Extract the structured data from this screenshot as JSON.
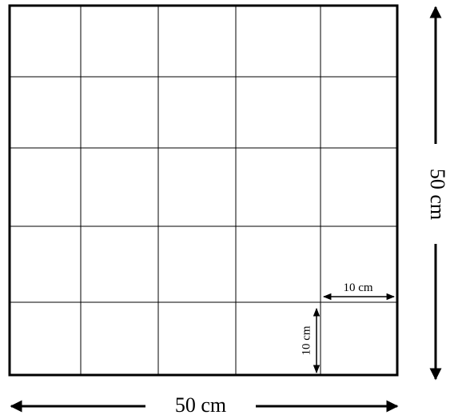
{
  "grid": {
    "rows": 5,
    "columns": 5
  },
  "labels": {
    "bottom_dimension": "50 cm",
    "right_dimension": "50 cm",
    "cell_width": "10 cm",
    "cell_height": "10 cm"
  },
  "colors": {
    "line": "#000000",
    "background": "#ffffff"
  }
}
